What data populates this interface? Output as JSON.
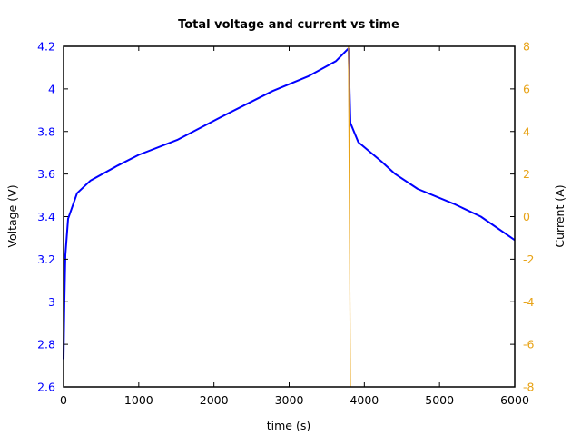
{
  "colors": {
    "voltage": "#0000ff",
    "current": "#e8a317",
    "axis": "#000000"
  },
  "chart_data": {
    "type": "line",
    "title": "Total voltage and current vs time",
    "xlabel": "time (s)",
    "ylabel": "Voltage (V)",
    "y2label": "Current (A)",
    "xlim": [
      0,
      6000
    ],
    "ylim": [
      2.6,
      4.2
    ],
    "y2lim": [
      -8,
      8
    ],
    "grid": false,
    "legend": null,
    "x_ticks": [
      "0",
      "1000",
      "2000",
      "3000",
      "4000",
      "5000",
      "6000"
    ],
    "y_ticks": [
      "2.6",
      "2.8",
      "3",
      "3.2",
      "3.4",
      "3.6",
      "3.8",
      "4",
      "4.2"
    ],
    "y2_ticks": [
      "-8",
      "-6",
      "-4",
      "-2",
      "0",
      "2",
      "4",
      "6",
      "8"
    ],
    "series": [
      {
        "name": "Voltage",
        "axis": "left",
        "color": "#0000ff",
        "x": [
          0,
          12,
          24,
          60,
          180,
          360,
          720,
          1000,
          1510,
          2050,
          2780,
          3260,
          3620,
          3790,
          3815,
          3920,
          4225,
          4410,
          4710,
          5190,
          5550,
          6000
        ],
        "y": [
          2.73,
          3.01,
          3.22,
          3.39,
          3.51,
          3.57,
          3.64,
          3.69,
          3.76,
          3.86,
          3.99,
          4.06,
          4.13,
          4.19,
          3.84,
          3.75,
          3.66,
          3.6,
          3.53,
          3.46,
          3.4,
          3.29
        ]
      },
      {
        "name": "Current",
        "axis": "right",
        "color": "#e8a317",
        "x": [
          3790,
          3815
        ],
        "y": [
          8,
          -8
        ],
        "note_visible": "Only the switching transition is visible; current is off-scale (>8 A) before and (<-8 A) after"
      }
    ]
  }
}
